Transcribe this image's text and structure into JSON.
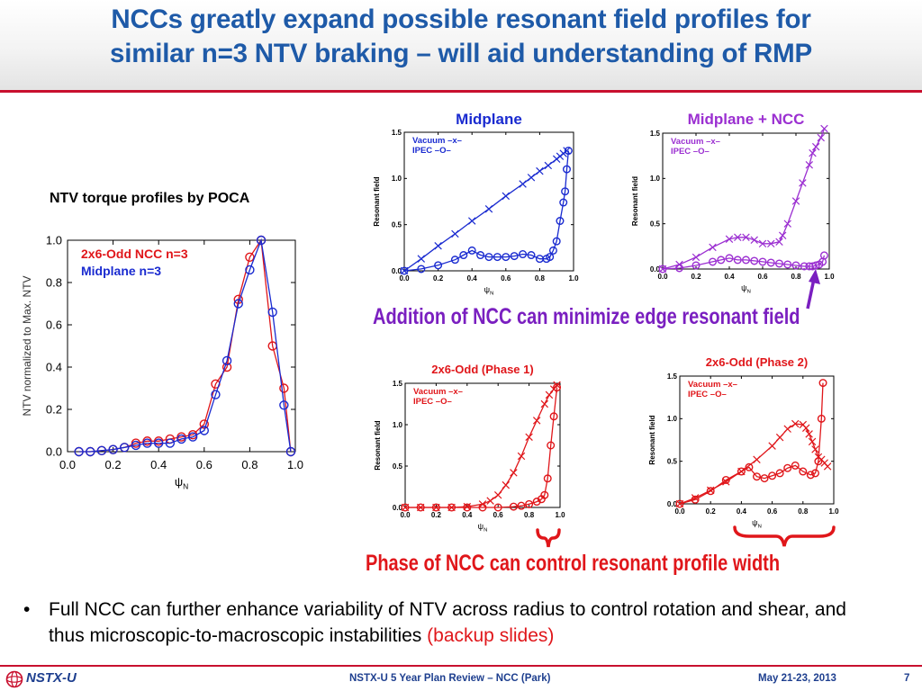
{
  "slide": {
    "title_line1": "NCCs greatly expand possible resonant field profiles for",
    "title_line2": "similar n=3 NTV braking – will aid understanding of RMP",
    "colors": {
      "title": "#1e5aa8",
      "rule": "#c8102e",
      "blue": "#1a2bd0",
      "red": "#e0161a",
      "purple": "#9b2fd1",
      "annotation_purple": "#7a1fc0"
    },
    "ntv_panel": {
      "heading": "NTV torque profiles by POCA"
    },
    "annotation_ncc": "Addition of NCC can minimize edge resonant field",
    "annotation_phase": "Phase of NCC can control resonant profile width",
    "bullet": {
      "text": "Full NCC can further enhance variability of NTV across radius to control rotation and shear, and thus microscopic-to-macroscopic instabilities",
      "highlight": "(backup slides)"
    },
    "footer": {
      "logo_text": "NSTX-U",
      "center": "NSTX-U 5 Year Plan Review – NCC (Park)",
      "date": "May 21-23, 2013",
      "page": "7"
    }
  },
  "chart_data": [
    {
      "id": "ntv",
      "type": "line",
      "title": "",
      "xlabel": "ψN",
      "ylabel": "NTV normalized to Max. NTV",
      "xlim": [
        0,
        1.0
      ],
      "ylim": [
        0,
        1.0
      ],
      "xticks": [
        "0.0",
        "0.2",
        "0.4",
        "0.6",
        "0.8",
        "1.0"
      ],
      "yticks": [
        "0.0",
        "0.2",
        "0.4",
        "0.6",
        "0.8",
        "1.0"
      ],
      "legend_position": "top-left",
      "series": [
        {
          "name": "2x6-Odd NCC n=3",
          "color": "#e0161a",
          "marker": "o",
          "x": [
            0.05,
            0.1,
            0.15,
            0.2,
            0.25,
            0.3,
            0.35,
            0.4,
            0.45,
            0.5,
            0.55,
            0.6,
            0.65,
            0.7,
            0.75,
            0.8,
            0.85,
            0.9,
            0.95,
            0.98
          ],
          "y": [
            0.0,
            0.0,
            0.005,
            0.01,
            0.02,
            0.04,
            0.05,
            0.05,
            0.06,
            0.07,
            0.08,
            0.13,
            0.32,
            0.4,
            0.72,
            0.92,
            1.0,
            0.5,
            0.3,
            0.0
          ]
        },
        {
          "name": "Midplane n=3",
          "color": "#1a2bd0",
          "marker": "o",
          "x": [
            0.05,
            0.1,
            0.15,
            0.2,
            0.25,
            0.3,
            0.35,
            0.4,
            0.45,
            0.5,
            0.55,
            0.6,
            0.65,
            0.7,
            0.75,
            0.8,
            0.85,
            0.9,
            0.95,
            0.98
          ],
          "y": [
            0.0,
            0.0,
            0.005,
            0.01,
            0.02,
            0.03,
            0.04,
            0.04,
            0.04,
            0.06,
            0.07,
            0.1,
            0.27,
            0.43,
            0.7,
            0.86,
            1.0,
            0.66,
            0.22,
            0.0
          ]
        }
      ]
    },
    {
      "id": "midplane",
      "type": "line",
      "title": "Midplane",
      "xlabel": "ψN",
      "ylabel": "Resonant field",
      "xlim": [
        0,
        1.0
      ],
      "ylim": [
        0,
        1.5
      ],
      "xticks": [
        "0.0",
        "0.2",
        "0.4",
        "0.6",
        "0.8",
        "1.0"
      ],
      "yticks": [
        "0.0",
        "0.5",
        "1.0",
        "1.5"
      ],
      "legend_position": "top-left",
      "series": [
        {
          "name": "Vacuum –x–",
          "color": "#1a2bd0",
          "marker": "x",
          "x": [
            0.0,
            0.1,
            0.2,
            0.3,
            0.4,
            0.5,
            0.6,
            0.7,
            0.75,
            0.8,
            0.85,
            0.9,
            0.92,
            0.94,
            0.96
          ],
          "y": [
            0.0,
            0.13,
            0.27,
            0.4,
            0.54,
            0.67,
            0.81,
            0.94,
            1.01,
            1.08,
            1.14,
            1.21,
            1.24,
            1.27,
            1.3
          ]
        },
        {
          "name": "IPEC –O–",
          "color": "#1a2bd0",
          "marker": "o",
          "x": [
            0.0,
            0.1,
            0.2,
            0.3,
            0.35,
            0.4,
            0.45,
            0.5,
            0.55,
            0.6,
            0.65,
            0.7,
            0.75,
            0.8,
            0.84,
            0.86,
            0.88,
            0.9,
            0.92,
            0.94,
            0.95,
            0.96,
            0.97
          ],
          "y": [
            0.0,
            0.02,
            0.06,
            0.12,
            0.17,
            0.22,
            0.17,
            0.15,
            0.15,
            0.15,
            0.16,
            0.18,
            0.17,
            0.13,
            0.13,
            0.15,
            0.22,
            0.32,
            0.54,
            0.74,
            0.86,
            1.1,
            1.3
          ]
        }
      ]
    },
    {
      "id": "midplane-ncc",
      "type": "line",
      "title": "Midplane + NCC",
      "xlabel": "ψN",
      "ylabel": "Resonant field",
      "xlim": [
        0,
        1.0
      ],
      "ylim": [
        0,
        1.5
      ],
      "xticks": [
        "0.0",
        "0.2",
        "0.4",
        "0.6",
        "0.8",
        "1.0"
      ],
      "yticks": [
        "0.0",
        "0.5",
        "1.0",
        "1.5"
      ],
      "legend_position": "top-left",
      "series": [
        {
          "name": "Vacuum –x–",
          "color": "#9b2fd1",
          "marker": "x",
          "x": [
            0.0,
            0.1,
            0.2,
            0.3,
            0.4,
            0.45,
            0.5,
            0.55,
            0.6,
            0.65,
            0.7,
            0.72,
            0.75,
            0.8,
            0.84,
            0.88,
            0.9,
            0.92,
            0.95,
            0.97
          ],
          "y": [
            0.0,
            0.05,
            0.13,
            0.24,
            0.33,
            0.35,
            0.35,
            0.32,
            0.28,
            0.28,
            0.3,
            0.37,
            0.5,
            0.75,
            0.95,
            1.15,
            1.28,
            1.35,
            1.45,
            1.55
          ]
        },
        {
          "name": "IPEC –O–",
          "color": "#9b2fd1",
          "marker": "o",
          "x": [
            0.0,
            0.1,
            0.2,
            0.3,
            0.35,
            0.4,
            0.45,
            0.5,
            0.55,
            0.6,
            0.65,
            0.7,
            0.75,
            0.8,
            0.85,
            0.88,
            0.9,
            0.92,
            0.94,
            0.96,
            0.97
          ],
          "y": [
            0.0,
            0.01,
            0.04,
            0.08,
            0.1,
            0.12,
            0.1,
            0.1,
            0.09,
            0.08,
            0.07,
            0.06,
            0.05,
            0.04,
            0.03,
            0.03,
            0.03,
            0.04,
            0.05,
            0.08,
            0.15
          ]
        }
      ]
    },
    {
      "id": "phase1",
      "type": "line",
      "title": "2x6-Odd (Phase 1)",
      "xlabel": "ψN",
      "ylabel": "Resonant field",
      "xlim": [
        0,
        1.0
      ],
      "ylim": [
        0,
        1.5
      ],
      "xticks": [
        "0.0",
        "0.2",
        "0.4",
        "0.6",
        "0.8",
        "1.0"
      ],
      "yticks": [
        "0.0",
        "0.5",
        "1.0",
        "1.5"
      ],
      "legend_position": "top-left",
      "series": [
        {
          "name": "Vacuum –x–",
          "color": "#e0161a",
          "marker": "x",
          "x": [
            0.0,
            0.1,
            0.2,
            0.3,
            0.4,
            0.5,
            0.55,
            0.6,
            0.65,
            0.7,
            0.75,
            0.8,
            0.85,
            0.9,
            0.93,
            0.96,
            0.98
          ],
          "y": [
            0.0,
            0.0,
            0.0,
            0.0,
            0.01,
            0.04,
            0.08,
            0.15,
            0.27,
            0.42,
            0.62,
            0.85,
            1.05,
            1.25,
            1.36,
            1.43,
            1.48
          ]
        },
        {
          "name": "IPEC –O–",
          "color": "#e0161a",
          "marker": "o",
          "x": [
            0.0,
            0.1,
            0.2,
            0.3,
            0.4,
            0.5,
            0.6,
            0.7,
            0.75,
            0.8,
            0.85,
            0.88,
            0.9,
            0.92,
            0.94,
            0.96,
            0.98
          ],
          "y": [
            0.0,
            0.0,
            0.0,
            0.0,
            0.0,
            0.0,
            0.0,
            0.01,
            0.02,
            0.04,
            0.07,
            0.1,
            0.15,
            0.35,
            0.75,
            1.1,
            1.45
          ]
        }
      ]
    },
    {
      "id": "phase2",
      "type": "line",
      "title": "2x6-Odd (Phase 2)",
      "xlabel": "ψN",
      "ylabel": "Resonant field",
      "xlim": [
        0,
        1.0
      ],
      "ylim": [
        0,
        1.5
      ],
      "xticks": [
        "0.0",
        "0.2",
        "0.4",
        "0.6",
        "0.8",
        "1.0"
      ],
      "yticks": [
        "0.0",
        "0.5",
        "1.0",
        "1.5"
      ],
      "legend_position": "top-left",
      "series": [
        {
          "name": "Vacuum –x–",
          "color": "#e0161a",
          "marker": "x",
          "x": [
            0.0,
            0.1,
            0.2,
            0.3,
            0.4,
            0.5,
            0.6,
            0.65,
            0.7,
            0.75,
            0.8,
            0.82,
            0.84,
            0.86,
            0.88,
            0.9,
            0.92,
            0.94,
            0.96
          ],
          "y": [
            0.0,
            0.07,
            0.16,
            0.26,
            0.38,
            0.52,
            0.68,
            0.78,
            0.88,
            0.94,
            0.93,
            0.89,
            0.82,
            0.73,
            0.64,
            0.55,
            0.52,
            0.48,
            0.44
          ]
        },
        {
          "name": "IPEC –O–",
          "color": "#e0161a",
          "marker": "o",
          "x": [
            0.0,
            0.1,
            0.2,
            0.3,
            0.4,
            0.45,
            0.5,
            0.55,
            0.6,
            0.65,
            0.7,
            0.75,
            0.8,
            0.85,
            0.88,
            0.9,
            0.92,
            0.93
          ],
          "y": [
            0.0,
            0.05,
            0.15,
            0.28,
            0.38,
            0.43,
            0.32,
            0.3,
            0.33,
            0.36,
            0.42,
            0.45,
            0.38,
            0.34,
            0.36,
            0.5,
            1.0,
            1.42
          ]
        }
      ]
    }
  ]
}
